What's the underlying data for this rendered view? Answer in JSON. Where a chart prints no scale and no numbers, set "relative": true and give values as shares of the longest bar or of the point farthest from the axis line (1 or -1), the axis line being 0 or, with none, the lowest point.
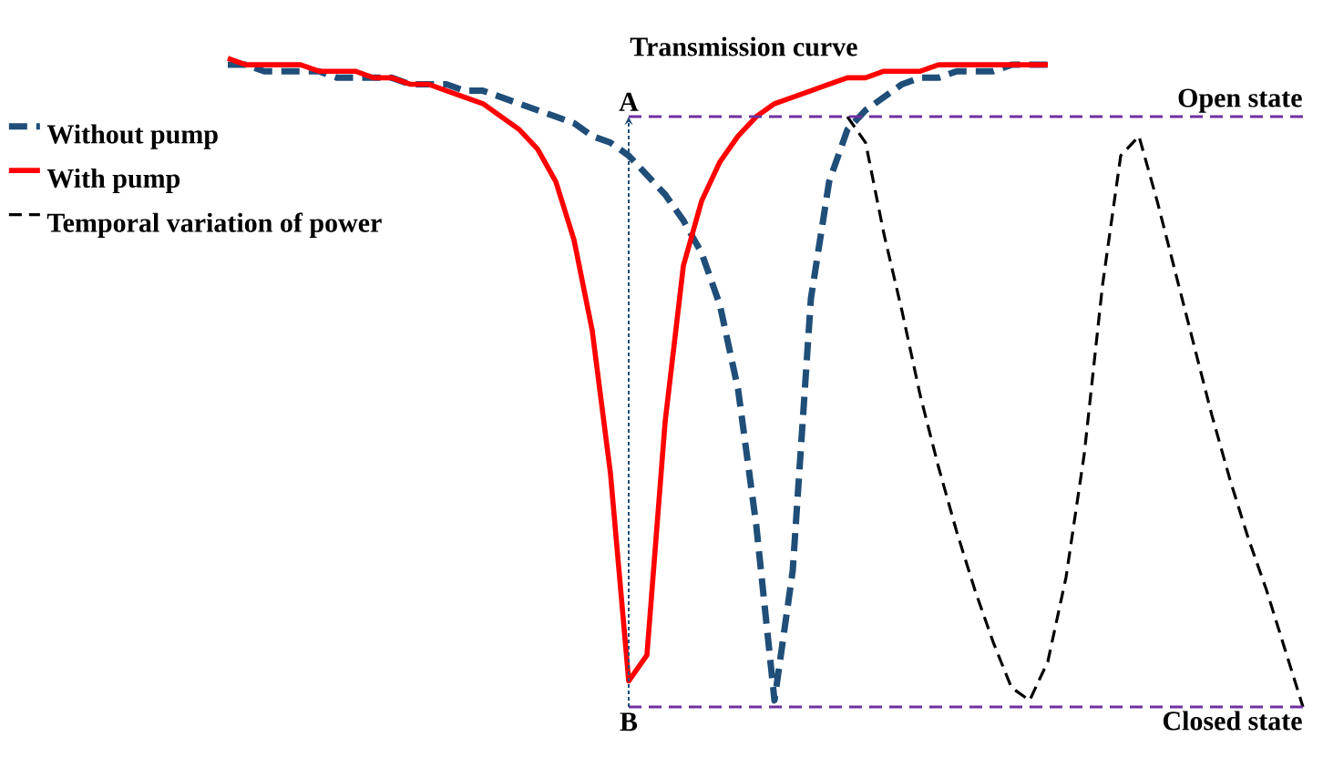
{
  "chart_data": {
    "type": "line",
    "relative": true,
    "title": "Transmission curve",
    "legend": "left",
    "marker": "none",
    "categories": [
      null,
      null,
      null,
      null,
      null,
      null,
      null,
      null,
      null,
      null,
      null,
      null,
      null,
      null,
      null,
      null,
      null,
      null,
      null,
      null,
      null,
      null,
      null,
      null,
      null,
      null,
      null,
      null,
      null,
      null,
      null,
      null,
      null,
      null,
      null,
      null,
      null,
      null,
      null,
      null,
      null,
      null,
      null,
      null,
      null,
      null,
      null,
      null,
      null,
      null,
      null,
      null,
      null,
      null,
      null,
      null,
      null,
      null,
      null,
      null
    ],
    "series": [
      {
        "name": "Without pump",
        "color": "#1f4e79",
        "line_style": "dashed",
        "values": [
          0.99,
          0.99,
          0.98,
          0.98,
          0.98,
          0.98,
          0.97,
          0.97,
          0.97,
          0.97,
          0.96,
          0.96,
          0.96,
          0.95,
          0.95,
          0.94,
          0.93,
          0.92,
          0.91,
          0.9,
          0.88,
          0.87,
          0.85,
          0.82,
          0.79,
          0.75,
          0.7,
          0.62,
          0.49,
          0.28,
          0.01,
          0.21,
          0.63,
          0.81,
          0.89,
          0.92,
          0.94,
          0.96,
          0.97,
          0.97,
          0.98,
          0.98,
          0.98,
          0.99,
          0.99,
          0.99,
          null,
          null,
          null,
          null,
          null,
          null,
          null,
          null,
          null,
          null,
          null,
          null,
          null,
          null
        ]
      },
      {
        "name": "With pump",
        "color": "#ff0000",
        "line_style": "solid",
        "values": [
          1.0,
          0.99,
          0.99,
          0.99,
          0.99,
          0.98,
          0.98,
          0.98,
          0.97,
          0.97,
          0.96,
          0.96,
          0.95,
          0.94,
          0.93,
          0.91,
          0.89,
          0.86,
          0.81,
          0.72,
          0.58,
          0.36,
          0.04,
          0.08,
          0.44,
          0.68,
          0.78,
          0.84,
          0.88,
          0.91,
          0.93,
          0.94,
          0.95,
          0.96,
          0.97,
          0.97,
          0.98,
          0.98,
          0.98,
          0.99,
          0.99,
          0.99,
          0.99,
          0.99,
          0.99,
          0.99,
          null,
          null,
          null,
          null,
          null,
          null,
          null,
          null,
          null,
          null,
          null,
          null,
          null,
          null
        ]
      },
      {
        "name": "Temporal variation of power",
        "color": "#000000",
        "line_style": "dashed",
        "values": [
          null,
          null,
          null,
          null,
          null,
          null,
          null,
          null,
          null,
          null,
          null,
          null,
          null,
          null,
          null,
          null,
          null,
          null,
          null,
          null,
          null,
          null,
          null,
          null,
          null,
          null,
          null,
          null,
          null,
          null,
          null,
          null,
          null,
          null,
          0.91,
          0.87,
          0.73,
          0.61,
          0.48,
          0.37,
          0.27,
          0.18,
          0.1,
          0.03,
          0.01,
          0.07,
          0.2,
          0.39,
          0.65,
          0.85,
          0.88,
          0.78,
          0.67,
          0.56,
          0.45,
          0.35,
          0.26,
          0.18,
          0.09,
          0.0
        ]
      }
    ],
    "ref_lines": [
      {
        "axis": "y",
        "value": 0.91,
        "label": "Open state",
        "color": "#7030a0",
        "line_style": "dashed"
      },
      {
        "axis": "y",
        "value": 0,
        "label": "Closed state",
        "color": "#7030a0",
        "line_style": "dashed"
      }
    ],
    "annotations": [
      {
        "text": "A",
        "y": 0.91
      },
      {
        "text": "B",
        "y": 0
      }
    ]
  }
}
